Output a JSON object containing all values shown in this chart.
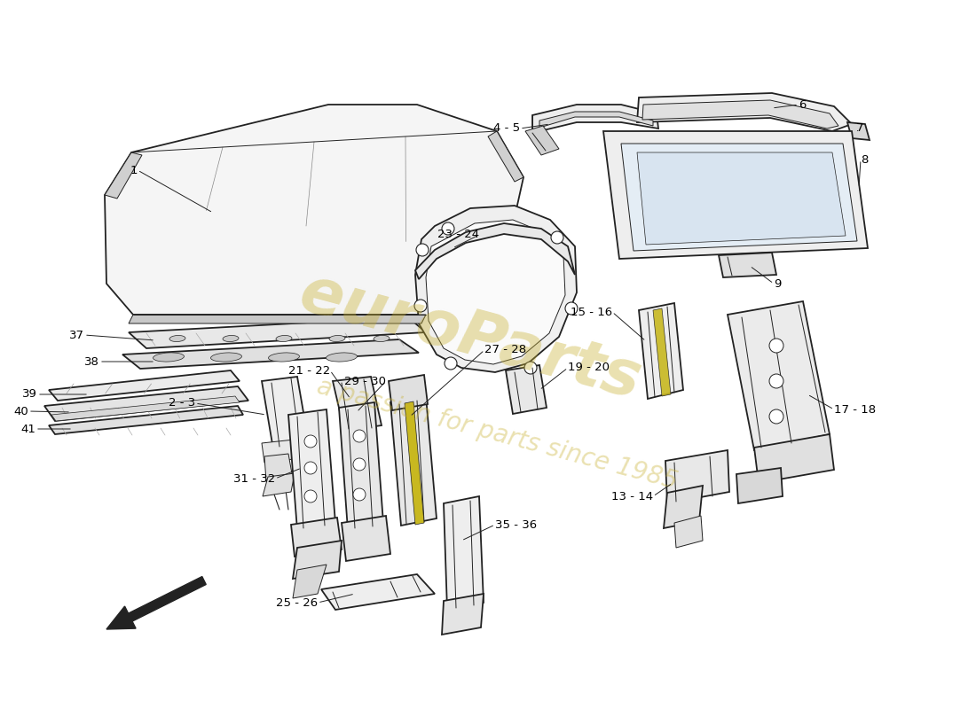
{
  "bg_color": "#ffffff",
  "line_color": "#222222",
  "label_color": "#000000",
  "watermark_text1": "euroParts",
  "watermark_text2": "a passion for parts since 1985",
  "watermark_color": "#c8b030",
  "watermark_alpha": 0.38,
  "label_fontsize": 9.5,
  "fig_width": 11.0,
  "fig_height": 8.0,
  "dpi": 100
}
